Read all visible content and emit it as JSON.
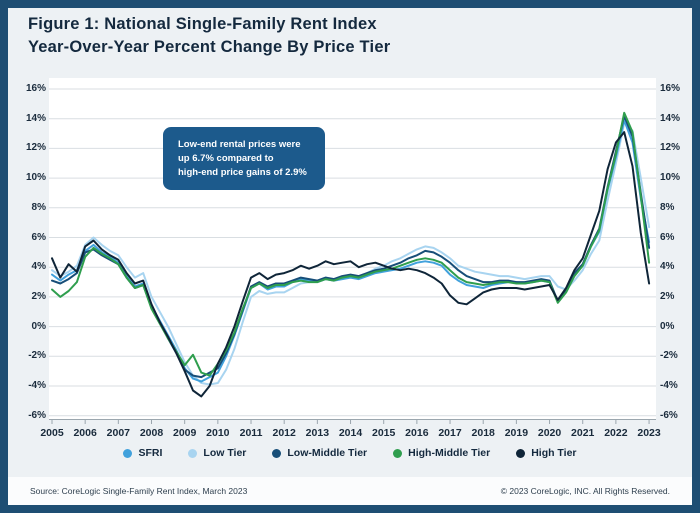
{
  "header": {
    "title_line1": "Figure 1: National Single-Family Rent Index",
    "title_line2": "Year-Over-Year Percent Change By Price Tier"
  },
  "annotation": {
    "lines": [
      "Low-end rental prices were",
      "up 6.7% compared to",
      "high-end price gains of 2.9%"
    ],
    "bg_color": "#1C5A8C",
    "text_color": "#FFFFFF"
  },
  "footer": {
    "source": "Source: CoreLogic Single-Family Rent Index, March 2023",
    "copyright": "© 2023 CoreLogic, INC. All Rights Reserved."
  },
  "colors": {
    "frame_border": "#1E4E73",
    "background": "#EDF1F4",
    "plot_background": "#FFFFFF",
    "gridline": "#D9DEE2",
    "axis": "#9BA6AE",
    "text": "#14293E"
  },
  "chart_data": {
    "type": "line",
    "title": "National Single-Family Rent Index Year-Over-Year Percent Change By Price Tier",
    "x_start": 2005,
    "x_step": 0.25,
    "x_tick_labels": [
      "2005",
      "2006",
      "2007",
      "2008",
      "2009",
      "2010",
      "2011",
      "2012",
      "2013",
      "2014",
      "2015",
      "2016",
      "2017",
      "2018",
      "2019",
      "2020",
      "2021",
      "2022",
      "2023"
    ],
    "y_ticks": [
      16,
      14,
      12,
      10,
      8,
      6,
      4,
      2,
      0,
      -2,
      -4,
      -6
    ],
    "y_tick_suffix": "%",
    "ylim": [
      -6,
      16
    ],
    "grid": "horizontal",
    "legend_position": "bottom",
    "draw_order": [
      1,
      0,
      2,
      3,
      4
    ],
    "series": [
      {
        "name": "SFRI",
        "color": "#41A1DC",
        "values": [
          3.5,
          3.1,
          3.5,
          3.8,
          5.1,
          5.5,
          5.0,
          4.7,
          4.3,
          3.4,
          2.7,
          2.9,
          1.4,
          0.4,
          -0.6,
          -1.6,
          -2.8,
          -3.5,
          -3.7,
          -3.4,
          -3.1,
          -2.0,
          -0.6,
          1.0,
          2.6,
          2.9,
          2.5,
          2.7,
          2.7,
          3.0,
          3.2,
          3.1,
          3.0,
          3.2,
          3.1,
          3.2,
          3.3,
          3.2,
          3.4,
          3.6,
          3.7,
          3.8,
          3.9,
          4.1,
          4.3,
          4.4,
          4.3,
          4.1,
          3.5,
          3.1,
          2.8,
          2.7,
          2.6,
          2.8,
          2.9,
          3.0,
          3.0,
          2.9,
          3.0,
          3.1,
          3.0,
          1.7,
          2.4,
          3.5,
          4.1,
          5.4,
          6.4,
          9.2,
          11.4,
          13.9,
          12.4,
          8.6,
          5.7
        ]
      },
      {
        "name": "Low Tier",
        "color": "#A8D4F0",
        "values": [
          3.8,
          3.4,
          3.7,
          4.1,
          5.5,
          6.0,
          5.5,
          5.1,
          4.8,
          4.0,
          3.3,
          3.6,
          2.0,
          1.0,
          0.0,
          -1.2,
          -2.4,
          -3.3,
          -3.8,
          -3.9,
          -3.8,
          -2.9,
          -1.5,
          0.3,
          2.0,
          2.4,
          2.2,
          2.3,
          2.3,
          2.6,
          2.9,
          3.0,
          3.1,
          3.3,
          3.2,
          3.3,
          3.4,
          3.3,
          3.6,
          3.9,
          4.1,
          4.4,
          4.6,
          4.9,
          5.2,
          5.4,
          5.3,
          5.0,
          4.6,
          4.1,
          3.9,
          3.7,
          3.6,
          3.5,
          3.4,
          3.4,
          3.3,
          3.2,
          3.3,
          3.4,
          3.4,
          2.7,
          2.5,
          3.1,
          3.8,
          4.9,
          5.8,
          8.5,
          11.0,
          13.7,
          13.2,
          10.0,
          6.7
        ]
      },
      {
        "name": "Low-Middle Tier",
        "color": "#174E78",
        "values": [
          3.1,
          2.9,
          3.2,
          3.6,
          5.0,
          5.2,
          4.8,
          4.5,
          4.2,
          3.3,
          2.6,
          2.8,
          1.3,
          0.3,
          -0.8,
          -1.8,
          -2.9,
          -3.3,
          -3.4,
          -3.1,
          -2.8,
          -1.8,
          -0.5,
          1.1,
          2.7,
          3.0,
          2.7,
          2.9,
          2.9,
          3.1,
          3.3,
          3.2,
          3.1,
          3.3,
          3.2,
          3.4,
          3.5,
          3.4,
          3.6,
          3.8,
          3.9,
          4.1,
          4.3,
          4.6,
          4.8,
          5.1,
          5.0,
          4.7,
          4.3,
          3.8,
          3.4,
          3.2,
          3.0,
          3.0,
          3.1,
          3.1,
          3.0,
          3.0,
          3.1,
          3.2,
          3.1,
          1.7,
          2.4,
          3.6,
          4.2,
          5.5,
          6.6,
          9.4,
          11.8,
          14.2,
          12.8,
          9.0,
          5.3
        ]
      },
      {
        "name": "High-Middle Tier",
        "color": "#2F9E4E",
        "values": [
          2.5,
          2.0,
          2.4,
          3.0,
          4.7,
          5.3,
          4.9,
          4.6,
          4.2,
          3.3,
          2.6,
          2.8,
          1.2,
          0.2,
          -0.8,
          -1.7,
          -2.6,
          -1.9,
          -3.1,
          -3.3,
          -2.5,
          -1.6,
          -0.4,
          1.2,
          2.6,
          2.9,
          2.6,
          2.8,
          2.8,
          3.0,
          3.1,
          3.0,
          3.0,
          3.2,
          3.1,
          3.3,
          3.4,
          3.3,
          3.5,
          3.7,
          3.8,
          3.9,
          4.1,
          4.3,
          4.5,
          4.6,
          4.5,
          4.3,
          3.8,
          3.3,
          3.0,
          2.9,
          2.8,
          2.9,
          3.0,
          3.0,
          2.9,
          2.9,
          3.0,
          3.1,
          3.0,
          1.6,
          2.3,
          3.4,
          4.1,
          5.4,
          6.5,
          9.3,
          11.6,
          14.4,
          13.1,
          8.8,
          4.3
        ]
      },
      {
        "name": "High Tier",
        "color": "#0F2538",
        "values": [
          4.6,
          3.3,
          4.2,
          3.7,
          5.4,
          5.8,
          5.2,
          4.8,
          4.5,
          3.6,
          2.9,
          3.1,
          1.5,
          0.3,
          -0.7,
          -1.8,
          -3.0,
          -4.3,
          -4.7,
          -4.0,
          -2.5,
          -1.4,
          0.0,
          1.7,
          3.3,
          3.6,
          3.2,
          3.5,
          3.6,
          3.8,
          4.1,
          3.9,
          4.1,
          4.4,
          4.2,
          4.3,
          4.4,
          4.0,
          4.2,
          4.3,
          4.1,
          3.9,
          3.8,
          3.9,
          3.8,
          3.6,
          3.3,
          2.9,
          2.1,
          1.6,
          1.5,
          1.9,
          2.3,
          2.5,
          2.6,
          2.6,
          2.6,
          2.5,
          2.6,
          2.7,
          2.8,
          1.8,
          2.6,
          3.8,
          4.6,
          6.2,
          7.8,
          10.6,
          12.4,
          13.1,
          10.8,
          6.3,
          2.9
        ]
      }
    ]
  }
}
